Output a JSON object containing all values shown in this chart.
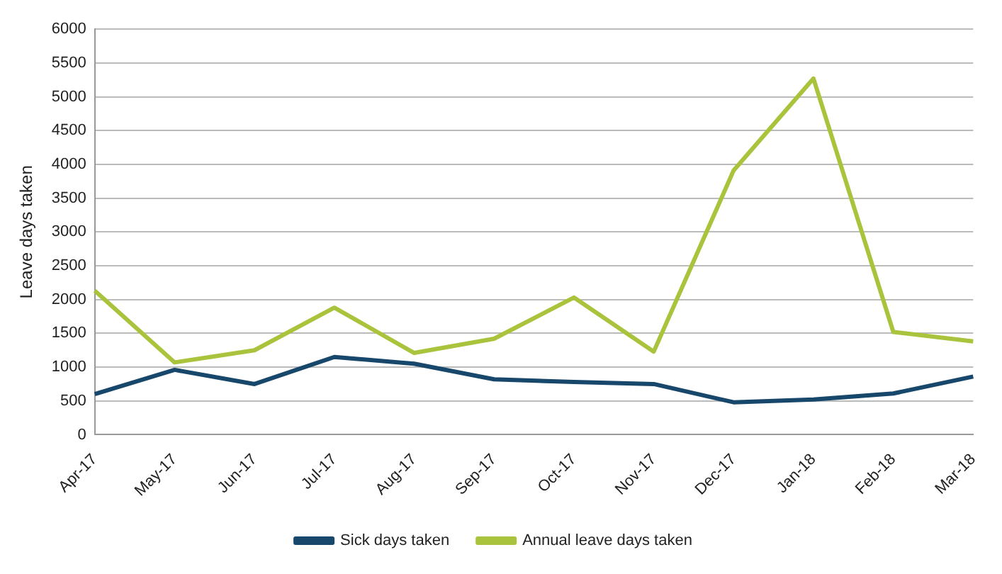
{
  "chart_data": {
    "type": "line",
    "ylabel": "Leave days taken",
    "categories": [
      "Apr-17",
      "May-17",
      "Jun-17",
      "Jul-17",
      "Aug-17",
      "Sep-17",
      "Oct-17",
      "Nov-17",
      "Dec-17",
      "Jan-18",
      "Feb-18",
      "Mar-18"
    ],
    "series": [
      {
        "name": "Sick days taken",
        "color": "#17476b",
        "values": [
          600,
          960,
          750,
          1150,
          1050,
          820,
          780,
          750,
          480,
          520,
          610,
          860
        ]
      },
      {
        "name": "Annual leave days taken",
        "color": "#a9c43c",
        "values": [
          2130,
          1070,
          1250,
          1880,
          1210,
          1420,
          2030,
          1230,
          3910,
          5270,
          1520,
          1380
        ]
      }
    ],
    "ylim": [
      0,
      6000
    ],
    "yticks": [
      0,
      500,
      1000,
      1500,
      2000,
      2500,
      3000,
      3500,
      4000,
      4500,
      5000,
      5500,
      6000
    ],
    "grid": "y",
    "legend": "bottom",
    "marker": "none",
    "line_style": "solid"
  }
}
